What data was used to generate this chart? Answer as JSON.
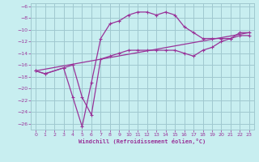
{
  "xlabel": "Windchill (Refroidissement éolien,°C)",
  "bg_color": "#c8eef0",
  "grid_color": "#a0c8d0",
  "line_color": "#993399",
  "xlim": [
    -0.5,
    23.5
  ],
  "ylim": [
    -27,
    -5.5
  ],
  "xticks": [
    0,
    1,
    2,
    3,
    4,
    5,
    6,
    7,
    8,
    9,
    10,
    11,
    12,
    13,
    14,
    15,
    16,
    17,
    18,
    19,
    20,
    21,
    22,
    23
  ],
  "yticks": [
    -26,
    -24,
    -22,
    -20,
    -18,
    -16,
    -14,
    -12,
    -10,
    -8,
    -6
  ],
  "line1_x": [
    0,
    1,
    3,
    4,
    5,
    6,
    7,
    8,
    9,
    10,
    11,
    12,
    13,
    14,
    15,
    16,
    17,
    18,
    19,
    20,
    21,
    22,
    23
  ],
  "line1_y": [
    -17,
    -17.5,
    -16.5,
    -16,
    -21.5,
    -24.5,
    -15.0,
    -14.5,
    -14.0,
    -13.5,
    -13.5,
    -13.5,
    -13.5,
    -13.5,
    -13.5,
    -14.0,
    -14.5,
    -13.5,
    -13.0,
    -12.0,
    -11.5,
    -11.0,
    -11.0
  ],
  "line2_x": [
    0,
    1,
    3,
    4,
    5,
    6,
    7,
    8,
    9,
    10,
    11,
    12,
    13,
    14,
    15,
    16,
    17,
    18,
    19,
    20,
    21,
    22,
    23
  ],
  "line2_y": [
    -17,
    -17.5,
    -16.5,
    -21.5,
    -26.5,
    -19.0,
    -11.5,
    -9.0,
    -8.5,
    -7.5,
    -7.0,
    -7.0,
    -7.5,
    -7.0,
    -7.5,
    -9.5,
    -10.5,
    -11.5,
    -11.5,
    -11.5,
    -11.5,
    -10.5,
    -10.5
  ],
  "line3_x": [
    0,
    23
  ],
  "line3_y": [
    -17,
    -10.5
  ]
}
